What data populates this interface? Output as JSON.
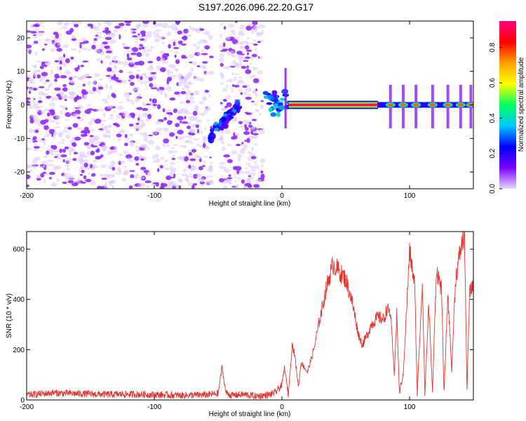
{
  "title": "S197.2026.096.22.20.G17",
  "chart_data": [
    {
      "type": "heatmap",
      "xlabel": "Height of straight line (km)",
      "ylabel": "Frequency (Hz)",
      "xlim": [
        -200,
        150
      ],
      "ylim": [
        -25,
        25
      ],
      "xticks": [
        -200,
        -100,
        0,
        100
      ],
      "yticks": [
        -20,
        -10,
        0,
        10,
        20
      ],
      "colorbar": {
        "label": "Normalized spectral amplitude",
        "range": [
          0,
          0.95
        ],
        "ticks": [
          "0.0",
          "0.2",
          "0.4",
          "0.6",
          "0.8"
        ],
        "tick_values": [
          0,
          0.2,
          0.4,
          0.6,
          0.8
        ],
        "colors": [
          "#e6d8ff",
          "#7a00ff",
          "#0000ff",
          "#00c8ff",
          "#00ff60",
          "#ffff00",
          "#ffa000",
          "#ff0000",
          "#ff0080"
        ]
      },
      "features": [
        {
          "kind": "noise",
          "x": [
            -200,
            -15
          ],
          "freq": [
            -25,
            25
          ],
          "amplitude": 0.1
        },
        {
          "kind": "gap",
          "x": [
            -55,
            -48
          ]
        },
        {
          "kind": "streak",
          "from": [
            -57,
            -10
          ],
          "to": [
            -33,
            0
          ],
          "amplitude": 0.4
        },
        {
          "kind": "blob_cluster",
          "x": [
            -13,
            5
          ],
          "freq": [
            -3,
            4
          ],
          "amplitude": 0.3
        },
        {
          "kind": "line",
          "x": [
            5,
            75
          ],
          "freq": 0,
          "amplitude": 0.95
        },
        {
          "kind": "segmented_line",
          "x": [
            75,
            150
          ],
          "freq": 0,
          "amplitude": 0.6
        }
      ]
    },
    {
      "type": "line",
      "xlabel": "Height of straight line (km)",
      "ylabel": "SNR (10 * v/v)",
      "xlim": [
        -200,
        150
      ],
      "ylim": [
        0,
        670
      ],
      "xticks": [
        -200,
        -100,
        0,
        100
      ],
      "yticks": [
        0,
        200,
        400,
        600
      ],
      "color": "#e8322d",
      "series": [
        {
          "name": "SNR",
          "x": [
            -200,
            -180,
            -160,
            -140,
            -120,
            -100,
            -80,
            -60,
            -50,
            -47,
            -44,
            -40,
            -30,
            -20,
            -10,
            -5,
            0,
            2,
            5,
            8,
            10,
            13,
            15,
            20,
            25,
            30,
            35,
            40,
            45,
            50,
            55,
            60,
            63,
            67,
            70,
            75,
            80,
            82,
            85,
            88,
            90,
            92,
            95,
            100,
            104,
            106,
            110,
            112,
            115,
            118,
            121,
            125,
            127,
            130,
            133,
            136,
            140,
            143,
            145,
            147,
            150
          ],
          "y": [
            20,
            28,
            25,
            22,
            23,
            21,
            18,
            20,
            25,
            130,
            30,
            18,
            22,
            15,
            20,
            30,
            60,
            130,
            20,
            220,
            180,
            50,
            150,
            110,
            200,
            330,
            450,
            540,
            510,
            480,
            390,
            260,
            220,
            260,
            300,
            330,
            320,
            360,
            350,
            100,
            340,
            30,
            100,
            590,
            460,
            25,
            470,
            25,
            380,
            30,
            520,
            440,
            25,
            420,
            120,
            480,
            600,
            660,
            40,
            420,
            470
          ]
        }
      ]
    }
  ]
}
